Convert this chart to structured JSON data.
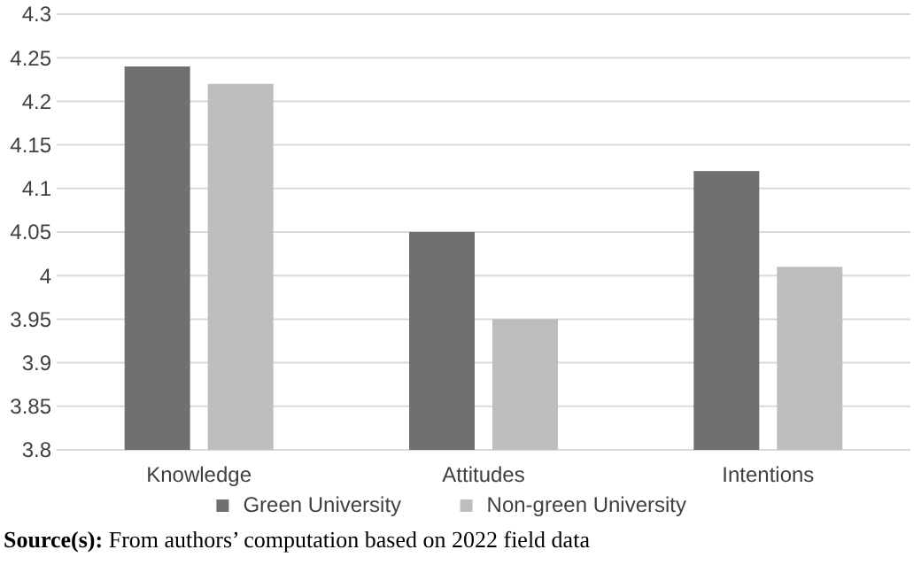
{
  "chart_data": {
    "type": "bar",
    "categories": [
      "Knowledge",
      "Attitudes",
      "Intentions"
    ],
    "series": [
      {
        "name": "Green University",
        "color": "#707070",
        "values": [
          4.24,
          4.05,
          4.12
        ]
      },
      {
        "name": "Non-green University",
        "color": "#bdbdbd",
        "values": [
          4.22,
          3.95,
          4.01
        ]
      }
    ],
    "ylim": [
      3.8,
      4.3
    ],
    "yticks": [
      3.8,
      3.85,
      3.9,
      3.95,
      4,
      4.05,
      4.1,
      4.15,
      4.2,
      4.25,
      4.3
    ],
    "grid": "y",
    "legend": "bottom",
    "annotations": [
      "Source(s): From authors’ computation based on 2022 field data"
    ]
  }
}
